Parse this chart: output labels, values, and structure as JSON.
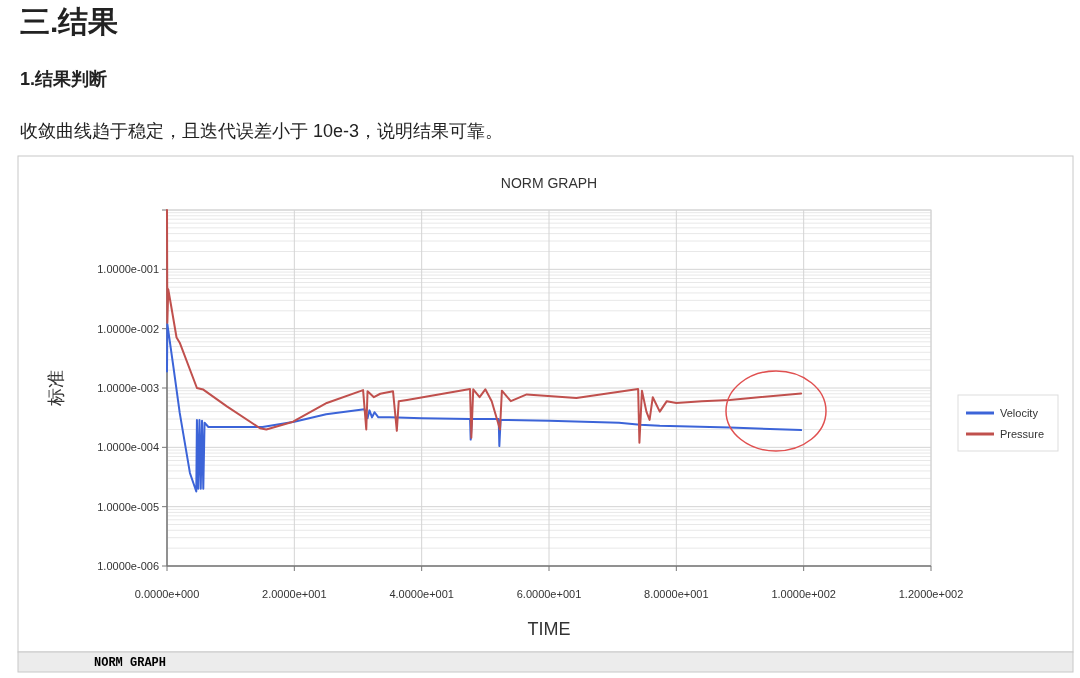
{
  "chart_data": {
    "type": "line",
    "title": "NORM GRAPH",
    "xlabel": "TIME",
    "ylabel": "标准",
    "annotations": [
      "三.结果",
      "1.结果判断",
      "收敛曲线趋于稳定，且迭代误差小于 10e-3，说明结果可靠。",
      "NORM GRAPH"
    ],
    "log": "y",
    "xlim": [
      0,
      120
    ],
    "ylim": [
      1e-06,
      1
    ],
    "xticks": [
      {
        "value": 0,
        "label": "0.0000e+000"
      },
      {
        "value": 20,
        "label": "2.0000e+001"
      },
      {
        "value": 40,
        "label": "4.0000e+001"
      },
      {
        "value": 60,
        "label": "6.0000e+001"
      },
      {
        "value": 80,
        "label": "8.0000e+001"
      },
      {
        "value": 100,
        "label": "1.0000e+002"
      },
      {
        "value": 120,
        "label": "1.2000e+002"
      }
    ],
    "yticks": [
      {
        "value": 1e-06,
        "label": "1.0000e-006"
      },
      {
        "value": 1e-05,
        "label": "1.0000e-005"
      },
      {
        "value": 0.0001,
        "label": "1.0000e-004"
      },
      {
        "value": 0.001,
        "label": "1.0000e-003"
      },
      {
        "value": 0.01,
        "label": "1.0000e-002"
      },
      {
        "value": 0.1,
        "label": "1.0000e-001"
      },
      {
        "value": 1,
        "label": null
      }
    ],
    "grid": true,
    "legend": "right",
    "line_style": "solid",
    "marker": "none",
    "series": [
      {
        "name": "Velocity",
        "color": "#3c64d8",
        "x": [
          0,
          0.05,
          1.0,
          2.0,
          3.6,
          4.6,
          4.7,
          4.9,
          5.1,
          5.3,
          5.5,
          5.7,
          5.9,
          6.5,
          10,
          15,
          20,
          25,
          31,
          31.5,
          31.8,
          32.2,
          32.6,
          33.2,
          35,
          40,
          47.6,
          47.7,
          47.9,
          52.1,
          52.2,
          52.4,
          60,
          71,
          74.3,
          77.4,
          88.4,
          99.6
        ],
        "values": [
          0.0019,
          0.012,
          0.0023,
          0.00038,
          3.7e-05,
          1.8e-05,
          0.00029,
          2e-05,
          0.00029,
          2e-05,
          0.00028,
          2e-05,
          0.00026,
          0.00022,
          0.00022,
          0.00022,
          0.00027,
          0.00036,
          0.00044,
          0.00031,
          0.00042,
          0.00032,
          0.00039,
          0.00032,
          0.00032,
          0.00031,
          0.0003,
          0.000135,
          0.0003,
          0.0003,
          0.000105,
          0.00029,
          0.00028,
          0.00026,
          0.00024,
          0.00023,
          0.000215,
          0.000195
        ]
      },
      {
        "name": "Pressure",
        "color": "#c0504d",
        "x": [
          0,
          0.05,
          0.2,
          0.6,
          1.5,
          2.0,
          4.7,
          5.7,
          9.4,
          14.6,
          15.6,
          19.8,
          25.1,
          30.8,
          31.3,
          31.5,
          32.5,
          33.5,
          35.5,
          36.1,
          36.4,
          37.7,
          47.6,
          47.8,
          48.1,
          49.1,
          50,
          51,
          52.3,
          52.6,
          54,
          56.5,
          64.3,
          74.0,
          74.2,
          74.6,
          75.3,
          75.8,
          76.3,
          77.4,
          78.5,
          80,
          84,
          88.4,
          99.6
        ],
        "values": [
          1.0,
          0.0126,
          0.046,
          0.026,
          0.0071,
          0.0058,
          0.001,
          0.00094,
          0.00049,
          0.00021,
          0.0002,
          0.00027,
          0.00056,
          0.00092,
          0.0002,
          0.00088,
          0.0007,
          0.0008,
          0.00088,
          0.00019,
          0.0006,
          0.00063,
          0.00096,
          0.000145,
          0.00095,
          0.0007,
          0.00095,
          0.0006,
          0.0002,
          0.0009,
          0.0006,
          0.00078,
          0.00068,
          0.00096,
          0.00012,
          0.0009,
          0.0004,
          0.00029,
          0.0007,
          0.0004,
          0.0006,
          0.00056,
          0.0006,
          0.00063,
          0.00081
        ]
      }
    ]
  }
}
